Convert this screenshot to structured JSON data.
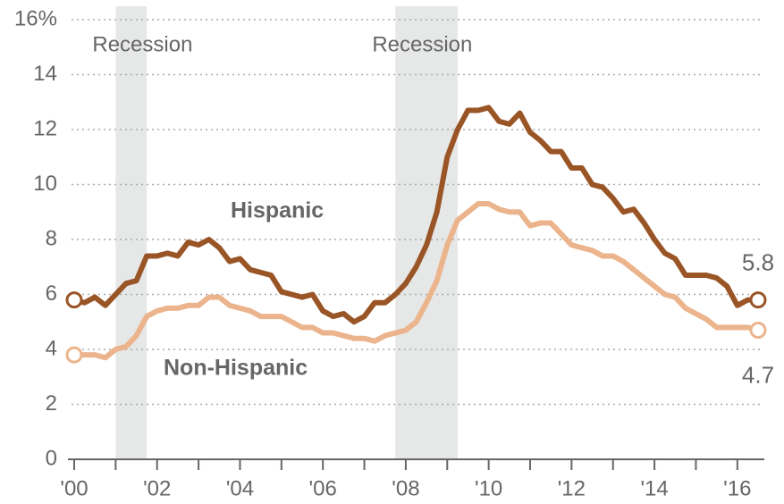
{
  "chart_data": {
    "type": "line",
    "x": [
      2000,
      2000.25,
      2000.5,
      2000.75,
      2001,
      2001.25,
      2001.5,
      2001.75,
      2002,
      2002.25,
      2002.5,
      2002.75,
      2003,
      2003.25,
      2003.5,
      2003.75,
      2004,
      2004.25,
      2004.5,
      2004.75,
      2005,
      2005.25,
      2005.5,
      2005.75,
      2006,
      2006.25,
      2006.5,
      2006.75,
      2007,
      2007.25,
      2007.5,
      2007.75,
      2008,
      2008.25,
      2008.5,
      2008.75,
      2009,
      2009.25,
      2009.5,
      2009.75,
      2010,
      2010.25,
      2010.5,
      2010.75,
      2011,
      2011.25,
      2011.5,
      2011.75,
      2012,
      2012.25,
      2012.5,
      2012.75,
      2013,
      2013.25,
      2013.5,
      2013.75,
      2014,
      2014.25,
      2014.5,
      2014.75,
      2015,
      2015.25,
      2015.5,
      2015.75,
      2016,
      2016.25,
      2016.5
    ],
    "series": [
      {
        "name": "Hispanic",
        "color": "#9a5526",
        "values": [
          5.8,
          5.7,
          5.9,
          5.6,
          6.0,
          6.4,
          6.5,
          7.4,
          7.4,
          7.5,
          7.4,
          7.9,
          7.8,
          8.0,
          7.7,
          7.2,
          7.3,
          6.9,
          6.8,
          6.7,
          6.1,
          6.0,
          5.9,
          6.0,
          5.4,
          5.2,
          5.3,
          5.0,
          5.2,
          5.7,
          5.7,
          6.0,
          6.4,
          7.0,
          7.8,
          9.0,
          11.0,
          12.0,
          12.7,
          12.7,
          12.8,
          12.3,
          12.2,
          12.6,
          11.9,
          11.6,
          11.2,
          11.2,
          10.6,
          10.6,
          10.0,
          9.9,
          9.5,
          9.0,
          9.1,
          8.6,
          8.0,
          7.5,
          7.3,
          6.7,
          6.7,
          6.7,
          6.6,
          6.3,
          5.6,
          5.8,
          5.8
        ],
        "end_label": "5.8"
      },
      {
        "name": "Non-Hispanic",
        "color": "#ebb48c",
        "values": [
          3.8,
          3.8,
          3.8,
          3.7,
          4.0,
          4.1,
          4.5,
          5.2,
          5.4,
          5.5,
          5.5,
          5.6,
          5.6,
          5.9,
          5.9,
          5.6,
          5.5,
          5.4,
          5.2,
          5.2,
          5.2,
          5.0,
          4.8,
          4.8,
          4.6,
          4.6,
          4.5,
          4.4,
          4.4,
          4.3,
          4.5,
          4.6,
          4.7,
          5.0,
          5.7,
          6.5,
          7.8,
          8.7,
          9.0,
          9.3,
          9.3,
          9.1,
          9.0,
          9.0,
          8.5,
          8.6,
          8.6,
          8.2,
          7.8,
          7.7,
          7.6,
          7.4,
          7.4,
          7.2,
          6.9,
          6.6,
          6.3,
          6.0,
          5.9,
          5.5,
          5.3,
          5.1,
          4.8,
          4.8,
          4.8,
          4.8,
          4.7
        ],
        "end_label": "4.7"
      }
    ],
    "recessions": [
      {
        "label": "Recession",
        "start": 2001,
        "end": 2001.75
      },
      {
        "label": "Recession",
        "start": 2007.75,
        "end": 2009.25
      }
    ],
    "xlim": [
      2000,
      2016.5
    ],
    "xticks": [
      {
        "value": 2000,
        "label": "'00"
      },
      {
        "value": 2002,
        "label": "'02"
      },
      {
        "value": 2004,
        "label": "'04"
      },
      {
        "value": 2006,
        "label": "'06"
      },
      {
        "value": 2008,
        "label": "'08"
      },
      {
        "value": 2010,
        "label": "'10"
      },
      {
        "value": 2012,
        "label": "'12"
      },
      {
        "value": 2014,
        "label": "'14"
      },
      {
        "value": 2016,
        "label": "'16"
      }
    ],
    "xminorticks": [
      2001,
      2003,
      2005,
      2007,
      2009,
      2011,
      2013,
      2015
    ],
    "ylim": [
      0,
      16
    ],
    "yticks": [
      0,
      2,
      4,
      6,
      8,
      10,
      12,
      14,
      {
        "value": 16,
        "label": "16%"
      }
    ],
    "grid": true
  }
}
